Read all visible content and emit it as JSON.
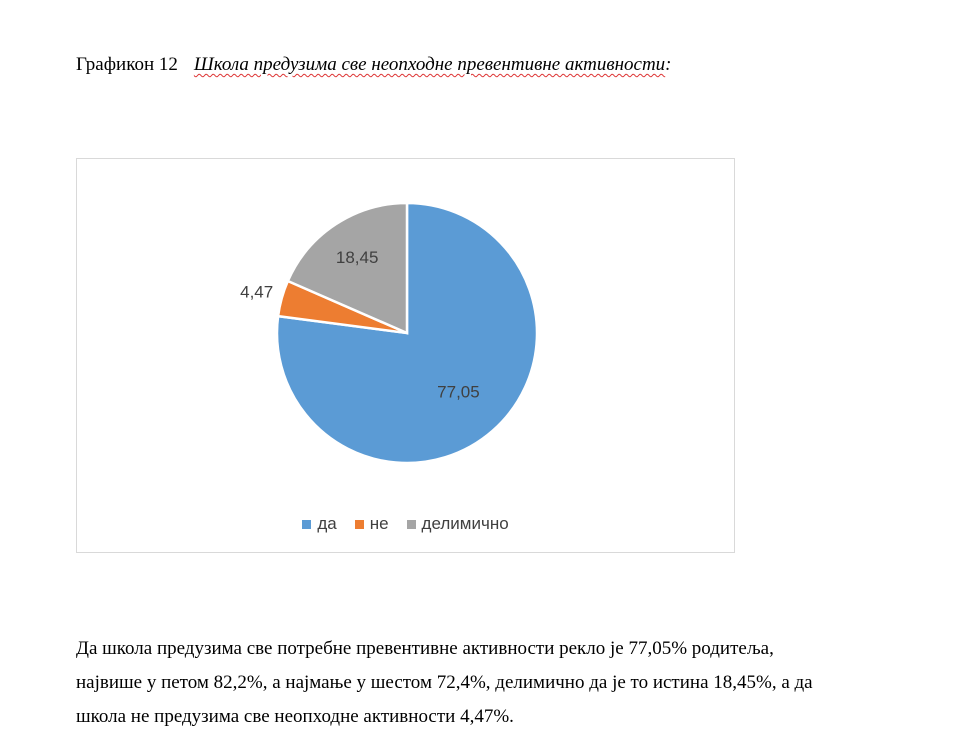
{
  "caption": {
    "number": "Графикон 12",
    "title": "Школа предузима све неопходне превентивне активности",
    "colon": ":"
  },
  "chart_data": {
    "type": "pie",
    "categories": [
      "да",
      "не",
      "делимично"
    ],
    "values": [
      77.05,
      4.47,
      18.45
    ],
    "labels": [
      "77,05",
      "4,47",
      "18,45"
    ],
    "colors": [
      "#5b9bd5",
      "#ed7d31",
      "#a5a5a5"
    ],
    "legend_position": "bottom"
  },
  "paragraph": {
    "lines": [
      "Да школа предузима све потребне превентивне активности рекло је 77,05% родитеља,",
      "највише у петом 82,2%, а најмање у шестом 72,4%, делимично да је то истина 18,45%, а да",
      "школа не предузима све неопходне активности 4,47%."
    ]
  }
}
